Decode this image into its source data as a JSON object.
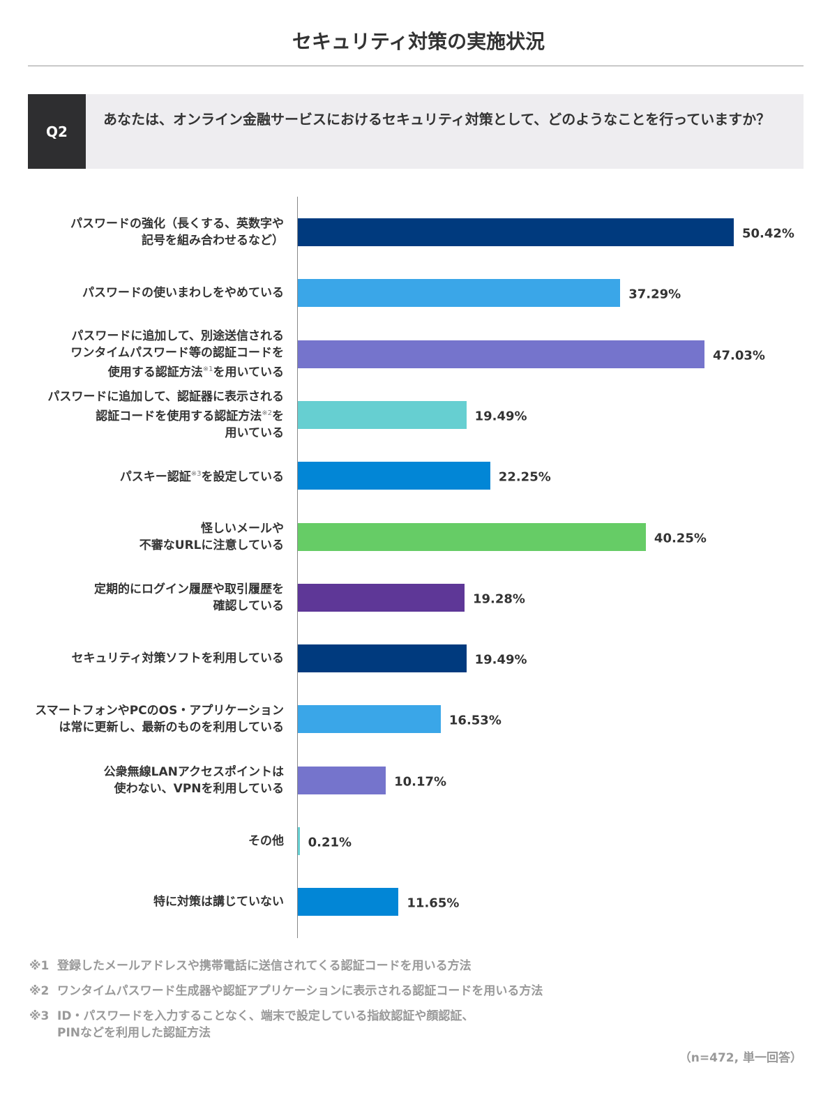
{
  "title": "セキュリティ対策の実施状況",
  "question": {
    "tag": "Q2",
    "text": "あなたは、オンライン金融サービスにおけるセキュリティ対策として、どのようなことを行っていますか？"
  },
  "chart_data": {
    "type": "bar",
    "orientation": "horizontal",
    "unit": "%",
    "xlim": [
      0,
      55
    ],
    "grid": false,
    "categories": [
      [
        [
          "パスワードの強化（長くする、英数字や"
        ],
        [
          "記号を組み合わせるなど）"
        ]
      ],
      [
        [
          "パスワードの使いまわしをやめている"
        ]
      ],
      [
        [
          "パスワードに追加して、別途送信される"
        ],
        [
          "ワンタイムパスワード等の認証コードを"
        ],
        [
          "使用する認証方法",
          "※1",
          "を用いている"
        ]
      ],
      [
        [
          "パスワードに追加して、認証器に表示される"
        ],
        [
          "認証コードを使用する認証方法",
          "※2",
          "を"
        ],
        [
          "用いている"
        ]
      ],
      [
        [
          "パスキー認証",
          "※3",
          "を設定している"
        ]
      ],
      [
        [
          "怪しいメールや"
        ],
        [
          "不審なURLに注意している"
        ]
      ],
      [
        [
          "定期的にログイン履歴や取引履歴を"
        ],
        [
          "確認している"
        ]
      ],
      [
        [
          "セキュリティ対策ソフトを利用している"
        ]
      ],
      [
        [
          "スマートフォンやPCのOS・アプリケーション"
        ],
        [
          "は常に更新し、最新のものを利用している"
        ]
      ],
      [
        [
          "公衆無線LANアクセスポイントは"
        ],
        [
          "使わない、VPNを利用している"
        ]
      ],
      [
        [
          "その他"
        ]
      ],
      [
        [
          "特に対策は講じていない"
        ]
      ]
    ],
    "values": [
      50.42,
      37.29,
      47.03,
      19.49,
      22.25,
      40.25,
      19.28,
      19.49,
      16.53,
      10.17,
      0.21,
      11.65
    ],
    "value_labels": [
      "50.42%",
      "37.29%",
      "47.03%",
      "19.49%",
      "22.25%",
      "40.25%",
      "19.28%",
      "19.49%",
      "16.53%",
      "10.17%",
      "0.21%",
      "11.65%"
    ],
    "colors": [
      "#003a7e",
      "#3aa6e8",
      "#7574cc",
      "#66cfd1",
      "#0286d6",
      "#66cc66",
      "#5e3797",
      "#003a7e",
      "#3aa6e8",
      "#7574cc",
      "#66cfd1",
      "#0286d6"
    ]
  },
  "notes": [
    {
      "num": "※1",
      "lines": [
        "登録したメールアドレスや携帯電話に送信されてくる認証コードを用いる方法"
      ]
    },
    {
      "num": "※2",
      "lines": [
        "ワンタイムパスワード生成器や認証アプリケーションに表示される認証コードを用いる方法"
      ]
    },
    {
      "num": "※3",
      "lines": [
        "ID・パスワードを入力することなく、端末で設定している指紋認証や顔認証、",
        "PINなどを利用した認証方法"
      ]
    }
  ],
  "sample": "（n=472, 単一回答）"
}
